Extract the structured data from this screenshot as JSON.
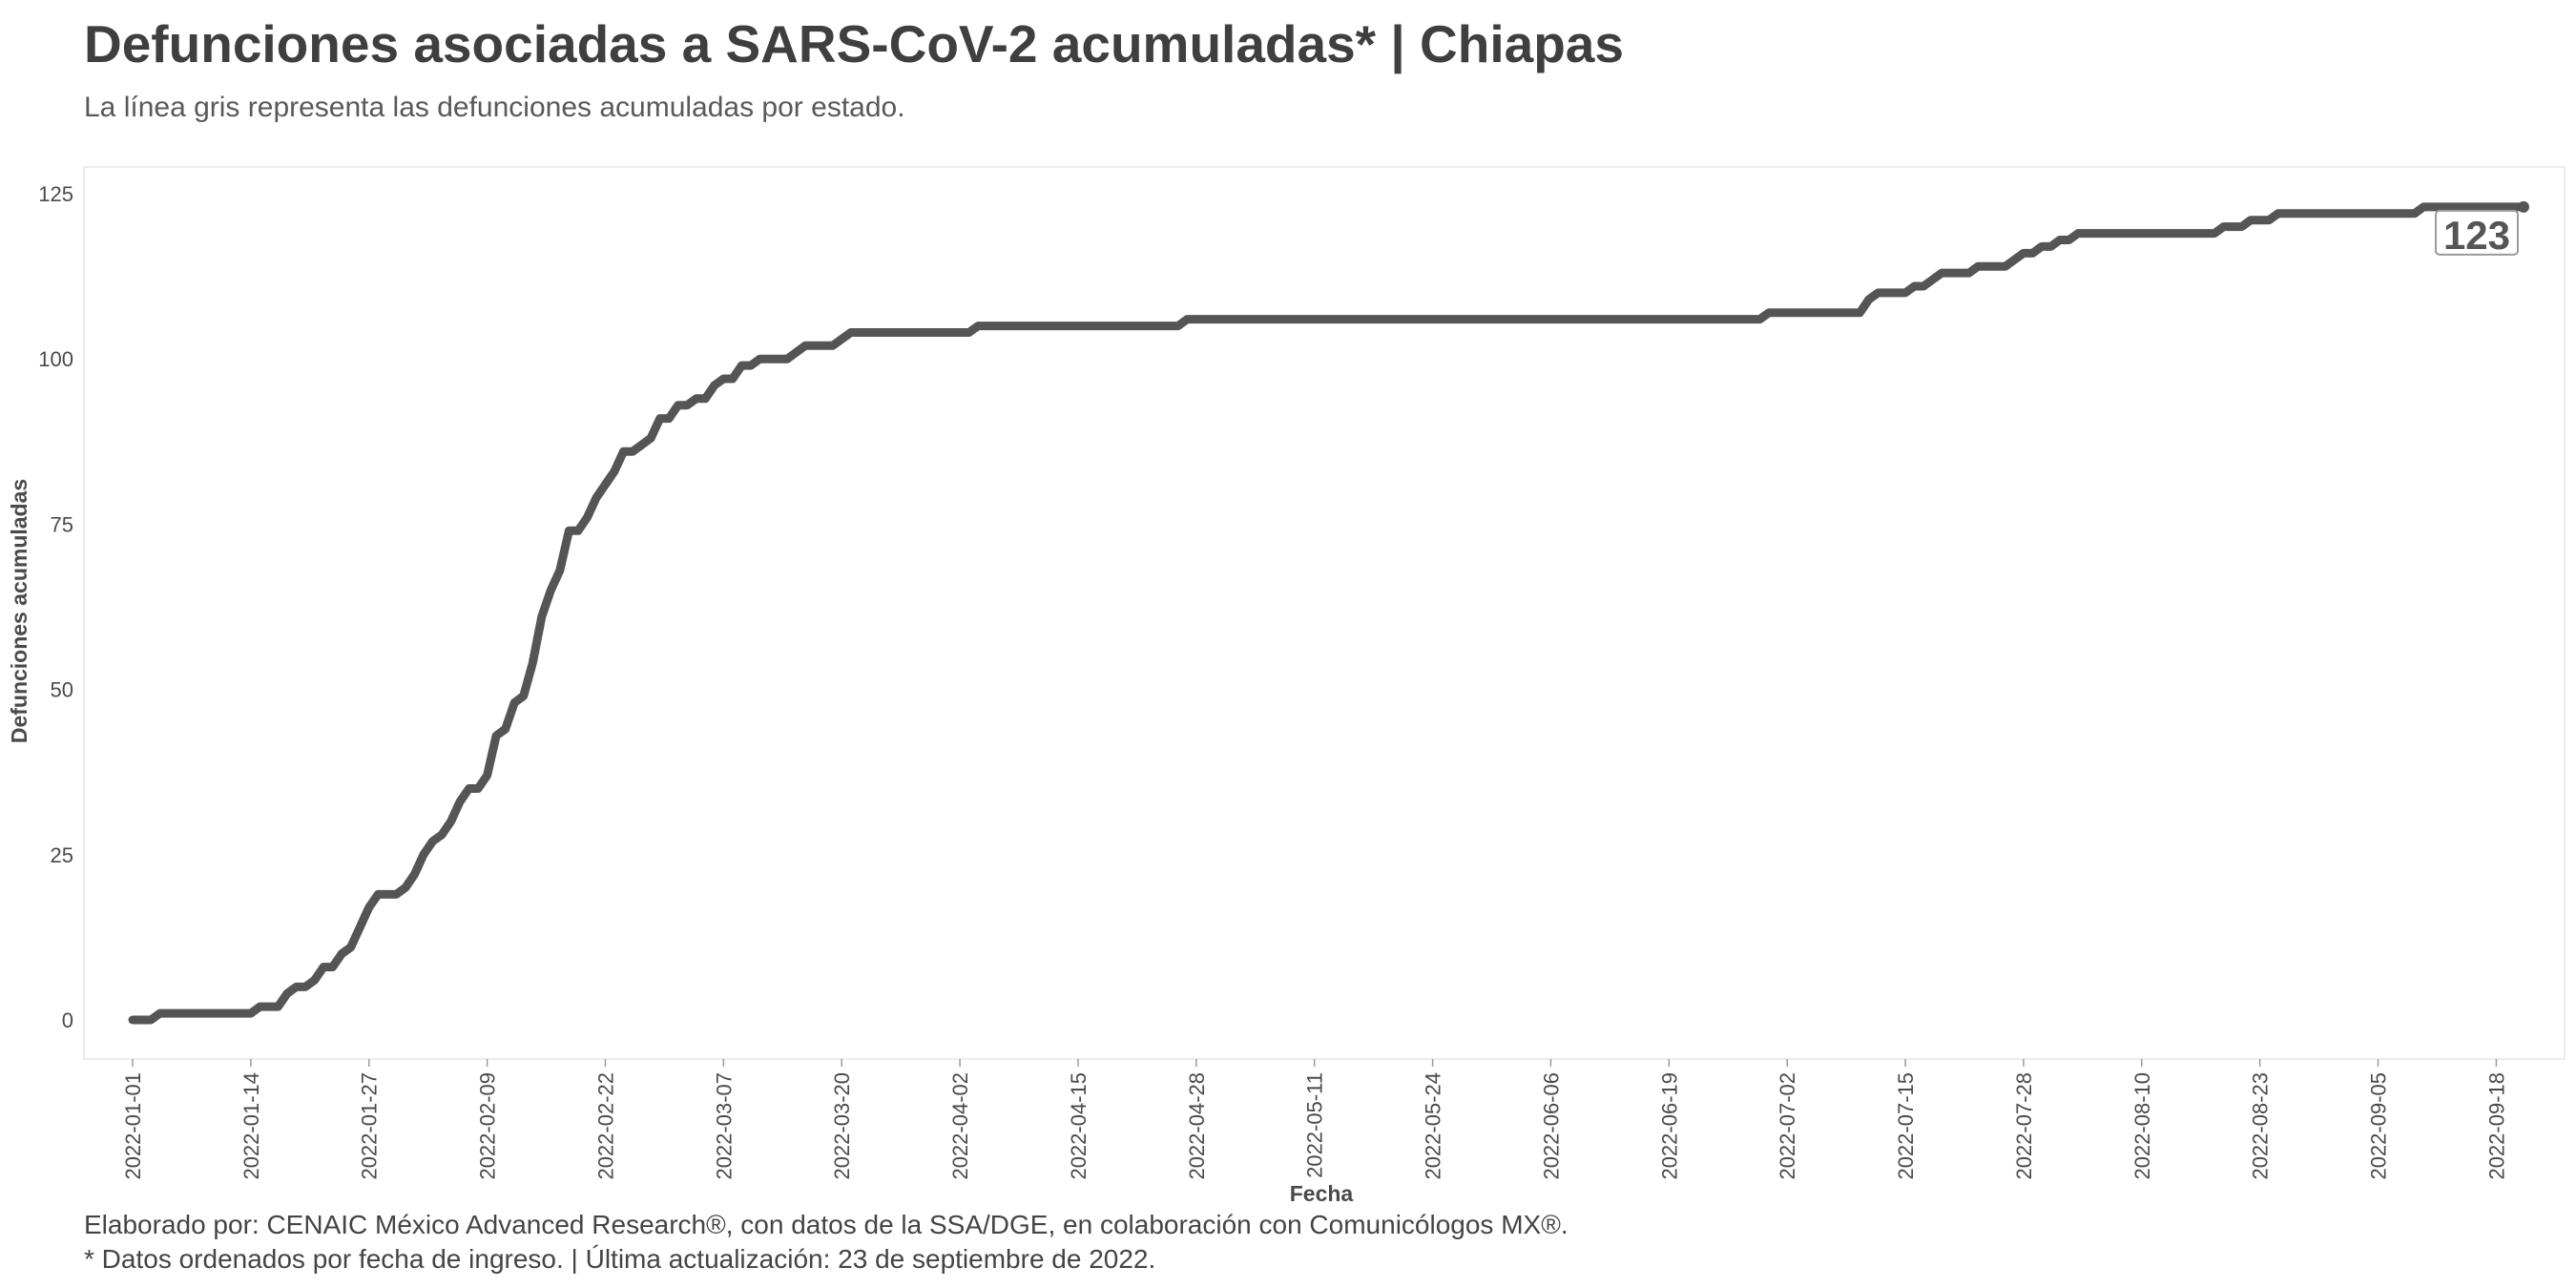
{
  "header": {
    "title": "Defunciones asociadas a SARS-CoV-2 acumuladas* | Chiapas",
    "subtitle": "La línea gris representa las defunciones acumuladas por estado."
  },
  "footer": {
    "line1": "Elaborado por: CENAIC México Advanced Research®, con datos de la SSA/DGE, en colaboración con Comunicólogos MX®.",
    "line2": "* Datos ordenados por fecha de ingreso. | Última actualización: 23 de septiembre de 2022."
  },
  "chart_data": {
    "type": "line",
    "title": "Defunciones asociadas a SARS-CoV-2 acumuladas* | Chiapas",
    "subtitle": "La línea gris representa las defunciones acumuladas por estado.",
    "xlabel": "Fecha",
    "ylabel": "Defunciones acumuladas",
    "xlim": [
      "2022-01-01",
      "2022-09-21"
    ],
    "ylim": [
      0,
      125
    ],
    "x_ticks": [
      "2022-01-01",
      "2022-01-14",
      "2022-01-27",
      "2022-02-09",
      "2022-02-22",
      "2022-03-07",
      "2022-03-20",
      "2022-04-02",
      "2022-04-15",
      "2022-04-28",
      "2022-05-11",
      "2022-05-24",
      "2022-06-06",
      "2022-06-19",
      "2022-07-02",
      "2022-07-15",
      "2022-07-28",
      "2022-08-10",
      "2022-08-23",
      "2022-09-05",
      "2022-09-18"
    ],
    "y_ticks": [
      0,
      25,
      50,
      75,
      100,
      125
    ],
    "grid": false,
    "line_color": "#555555",
    "end_label": "123",
    "series": [
      {
        "values": [
          {
            "x": "2022-01-01",
            "y": 0
          },
          {
            "x": "2022-01-03",
            "y": 0
          },
          {
            "x": "2022-01-04",
            "y": 1
          },
          {
            "x": "2022-01-14",
            "y": 1
          },
          {
            "x": "2022-01-15",
            "y": 2
          },
          {
            "x": "2022-01-17",
            "y": 2
          },
          {
            "x": "2022-01-18",
            "y": 4
          },
          {
            "x": "2022-01-19",
            "y": 5
          },
          {
            "x": "2022-01-20",
            "y": 5
          },
          {
            "x": "2022-01-21",
            "y": 6
          },
          {
            "x": "2022-01-22",
            "y": 8
          },
          {
            "x": "2022-01-23",
            "y": 8
          },
          {
            "x": "2022-01-24",
            "y": 10
          },
          {
            "x": "2022-01-25",
            "y": 11
          },
          {
            "x": "2022-01-26",
            "y": 14
          },
          {
            "x": "2022-01-27",
            "y": 17
          },
          {
            "x": "2022-01-28",
            "y": 19
          },
          {
            "x": "2022-01-30",
            "y": 19
          },
          {
            "x": "2022-01-31",
            "y": 20
          },
          {
            "x": "2022-02-01",
            "y": 22
          },
          {
            "x": "2022-02-02",
            "y": 25
          },
          {
            "x": "2022-02-03",
            "y": 27
          },
          {
            "x": "2022-02-04",
            "y": 28
          },
          {
            "x": "2022-02-05",
            "y": 30
          },
          {
            "x": "2022-02-06",
            "y": 33
          },
          {
            "x": "2022-02-07",
            "y": 35
          },
          {
            "x": "2022-02-08",
            "y": 35
          },
          {
            "x": "2022-02-09",
            "y": 37
          },
          {
            "x": "2022-02-10",
            "y": 43
          },
          {
            "x": "2022-02-11",
            "y": 44
          },
          {
            "x": "2022-02-12",
            "y": 48
          },
          {
            "x": "2022-02-13",
            "y": 49
          },
          {
            "x": "2022-02-14",
            "y": 54
          },
          {
            "x": "2022-02-15",
            "y": 61
          },
          {
            "x": "2022-02-16",
            "y": 65
          },
          {
            "x": "2022-02-17",
            "y": 68
          },
          {
            "x": "2022-02-18",
            "y": 74
          },
          {
            "x": "2022-02-19",
            "y": 74
          },
          {
            "x": "2022-02-20",
            "y": 76
          },
          {
            "x": "2022-02-21",
            "y": 79
          },
          {
            "x": "2022-02-22",
            "y": 81
          },
          {
            "x": "2022-02-23",
            "y": 83
          },
          {
            "x": "2022-02-24",
            "y": 86
          },
          {
            "x": "2022-02-25",
            "y": 86
          },
          {
            "x": "2022-02-26",
            "y": 87
          },
          {
            "x": "2022-02-27",
            "y": 88
          },
          {
            "x": "2022-02-28",
            "y": 91
          },
          {
            "x": "2022-03-01",
            "y": 91
          },
          {
            "x": "2022-03-02",
            "y": 93
          },
          {
            "x": "2022-03-03",
            "y": 93
          },
          {
            "x": "2022-03-04",
            "y": 94
          },
          {
            "x": "2022-03-05",
            "y": 94
          },
          {
            "x": "2022-03-06",
            "y": 96
          },
          {
            "x": "2022-03-07",
            "y": 97
          },
          {
            "x": "2022-03-08",
            "y": 97
          },
          {
            "x": "2022-03-09",
            "y": 99
          },
          {
            "x": "2022-03-10",
            "y": 99
          },
          {
            "x": "2022-03-11",
            "y": 100
          },
          {
            "x": "2022-03-14",
            "y": 100
          },
          {
            "x": "2022-03-16",
            "y": 102
          },
          {
            "x": "2022-03-19",
            "y": 102
          },
          {
            "x": "2022-03-21",
            "y": 104
          },
          {
            "x": "2022-04-03",
            "y": 104
          },
          {
            "x": "2022-04-04",
            "y": 105
          },
          {
            "x": "2022-04-26",
            "y": 105
          },
          {
            "x": "2022-04-27",
            "y": 106
          },
          {
            "x": "2022-06-29",
            "y": 106
          },
          {
            "x": "2022-06-30",
            "y": 107
          },
          {
            "x": "2022-07-10",
            "y": 107
          },
          {
            "x": "2022-07-11",
            "y": 109
          },
          {
            "x": "2022-07-12",
            "y": 110
          },
          {
            "x": "2022-07-15",
            "y": 110
          },
          {
            "x": "2022-07-16",
            "y": 111
          },
          {
            "x": "2022-07-17",
            "y": 111
          },
          {
            "x": "2022-07-19",
            "y": 113
          },
          {
            "x": "2022-07-22",
            "y": 113
          },
          {
            "x": "2022-07-23",
            "y": 114
          },
          {
            "x": "2022-07-26",
            "y": 114
          },
          {
            "x": "2022-07-28",
            "y": 116
          },
          {
            "x": "2022-07-29",
            "y": 116
          },
          {
            "x": "2022-07-30",
            "y": 117
          },
          {
            "x": "2022-07-31",
            "y": 117
          },
          {
            "x": "2022-08-01",
            "y": 118
          },
          {
            "x": "2022-08-02",
            "y": 118
          },
          {
            "x": "2022-08-03",
            "y": 119
          },
          {
            "x": "2022-08-18",
            "y": 119
          },
          {
            "x": "2022-08-19",
            "y": 120
          },
          {
            "x": "2022-08-21",
            "y": 120
          },
          {
            "x": "2022-08-22",
            "y": 121
          },
          {
            "x": "2022-08-24",
            "y": 121
          },
          {
            "x": "2022-08-25",
            "y": 122
          },
          {
            "x": "2022-09-09",
            "y": 122
          },
          {
            "x": "2022-09-10",
            "y": 123
          },
          {
            "x": "2022-09-21",
            "y": 123
          }
        ]
      }
    ]
  }
}
